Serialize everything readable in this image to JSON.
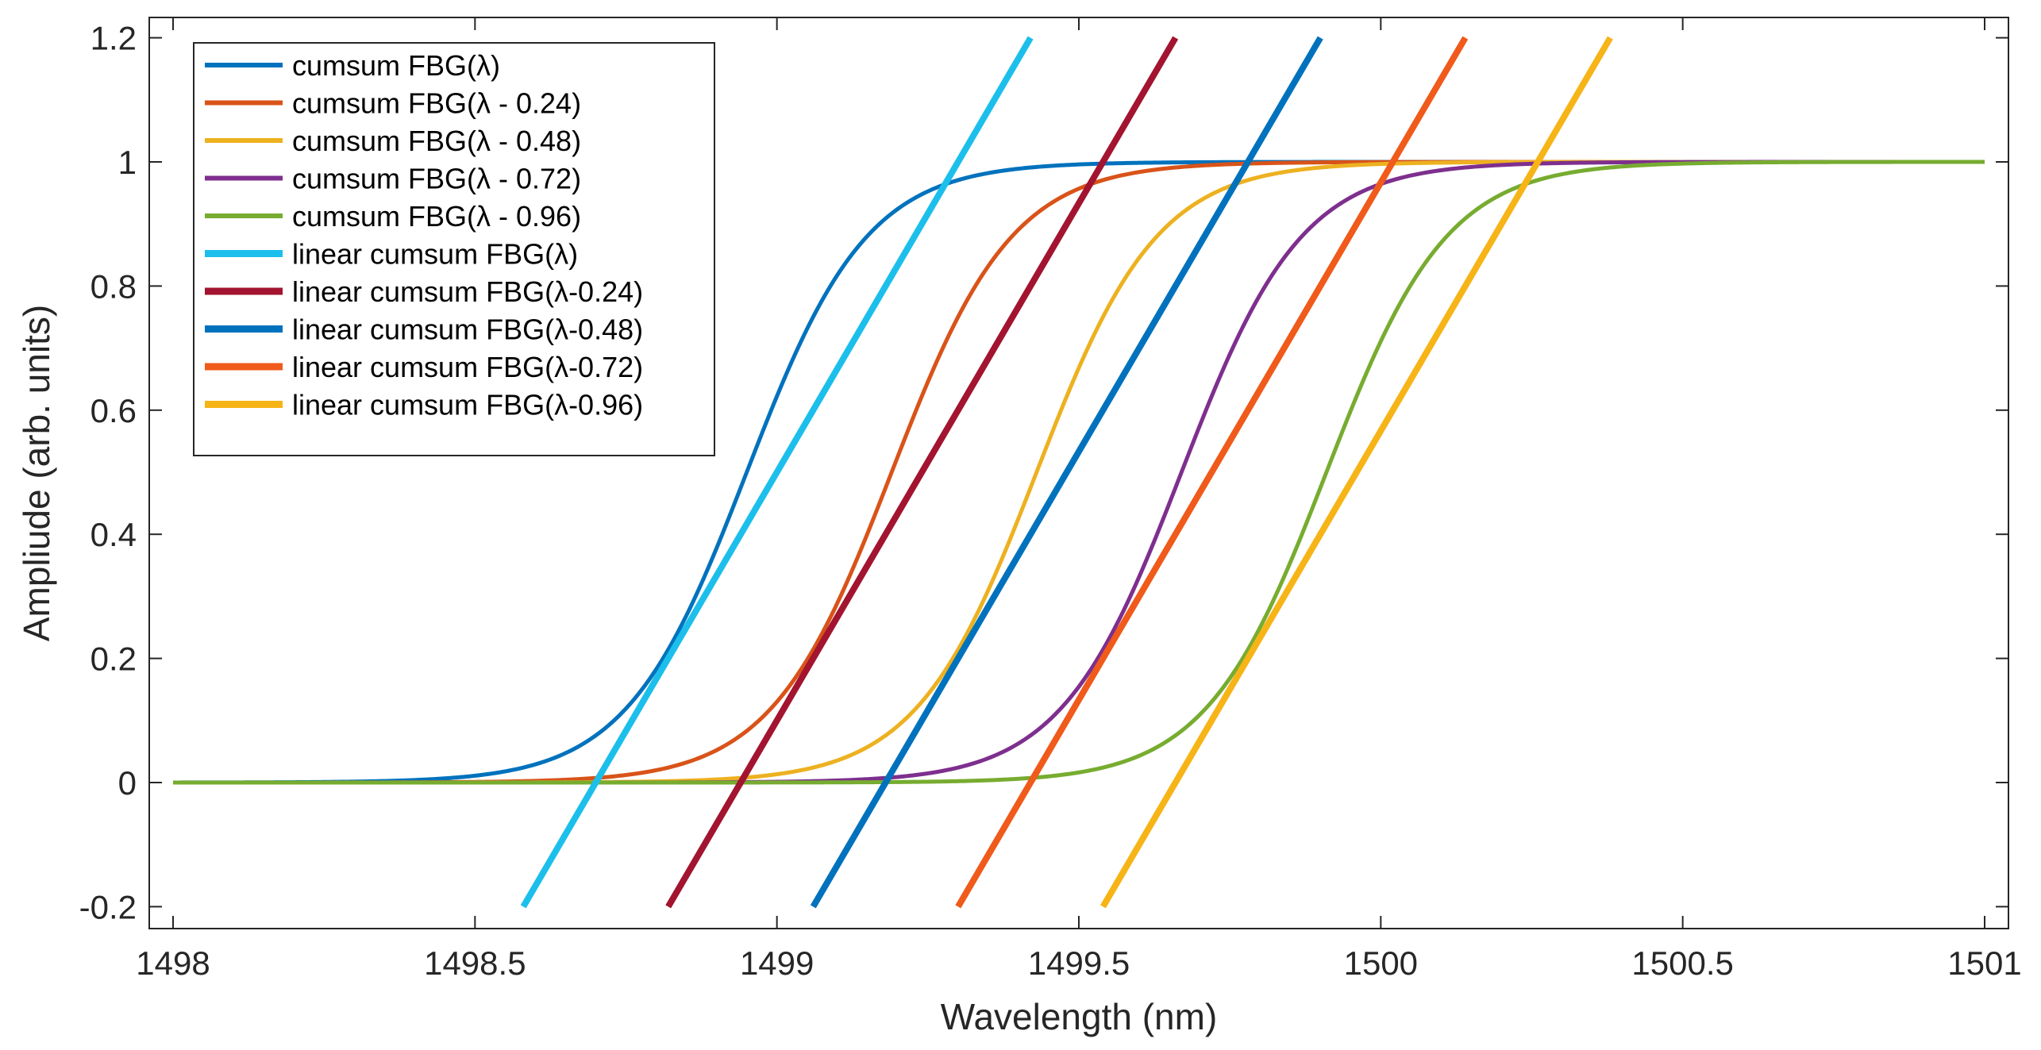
{
  "chart_data": {
    "type": "line",
    "title": "",
    "xlabel": "Wavelength (nm)",
    "ylabel": "Ampliude (arb. units)",
    "xlim": [
      1498,
      1501
    ],
    "ylim": [
      -0.2,
      1.2
    ],
    "xticks": [
      1498,
      1498.5,
      1499,
      1499.5,
      1500,
      1500.5,
      1501
    ],
    "xtick_labels": [
      "1498",
      "1498.5",
      "1499",
      "1499.5",
      "1500",
      "1500.5",
      "1501"
    ],
    "yticks": [
      -0.2,
      0,
      0.2,
      0.4,
      0.6,
      0.8,
      1,
      1.2
    ],
    "ytick_labels": [
      "-0.2",
      "0",
      "0.2",
      "0.4",
      "0.6",
      "0.8",
      "1",
      "1.2"
    ],
    "grid": false,
    "legend_position": "top-left",
    "series": [
      {
        "name": "cumsum FBG(λ)",
        "kind": "sigmoid",
        "center": 1498.95,
        "scale": 0.1,
        "color": "#0072BD"
      },
      {
        "name": "cumsum FBG(λ - 0.24)",
        "kind": "sigmoid",
        "center": 1499.19,
        "scale": 0.1,
        "color": "#D95319"
      },
      {
        "name": "cumsum FBG(λ - 0.48)",
        "kind": "sigmoid",
        "center": 1499.43,
        "scale": 0.1,
        "color": "#EDB120"
      },
      {
        "name": "cumsum FBG(λ - 0.72)",
        "kind": "sigmoid",
        "center": 1499.67,
        "scale": 0.1,
        "color": "#7E2F8E"
      },
      {
        "name": "cumsum FBG(λ - 0.96)",
        "kind": "sigmoid",
        "center": 1499.91,
        "scale": 0.1,
        "color": "#77AC30"
      },
      {
        "name": "linear cumsum FBG(λ)",
        "kind": "line",
        "x": [
          1498.58,
          1499.42
        ],
        "y": [
          -0.2,
          1.2
        ],
        "color": "#1CBFEB"
      },
      {
        "name": "linear cumsum FBG(λ-0.24)",
        "kind": "line",
        "x": [
          1498.82,
          1499.66
        ],
        "y": [
          -0.2,
          1.2
        ],
        "color": "#A2142F"
      },
      {
        "name": "linear cumsum FBG(λ-0.48)",
        "kind": "line",
        "x": [
          1499.06,
          1499.9
        ],
        "y": [
          -0.2,
          1.2
        ],
        "color": "#0072BD"
      },
      {
        "name": "linear cumsum FBG(λ-0.72)",
        "kind": "line",
        "x": [
          1499.3,
          1500.14
        ],
        "y": [
          -0.2,
          1.2
        ],
        "color": "#F05A1A"
      },
      {
        "name": "linear cumsum FBG(λ-0.96)",
        "kind": "line",
        "x": [
          1499.54,
          1500.38
        ],
        "y": [
          -0.2,
          1.2
        ],
        "color": "#F7B417"
      }
    ]
  }
}
